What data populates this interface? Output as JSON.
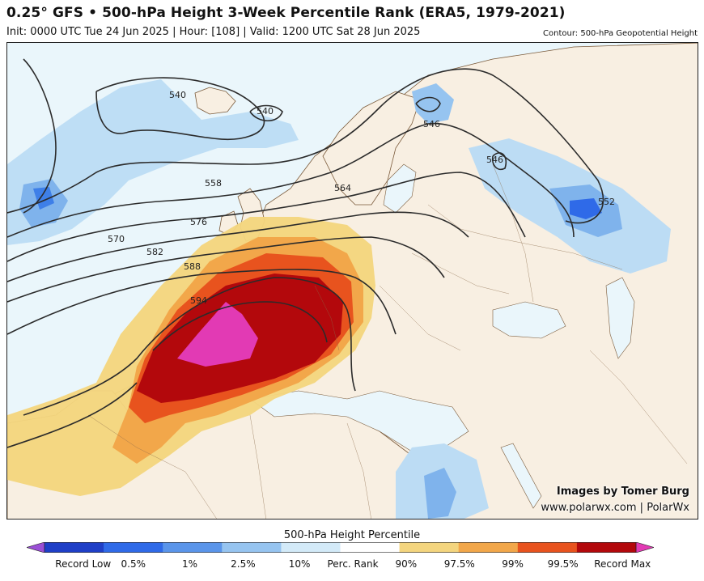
{
  "header": {
    "title": "0.25° GFS • 500-hPa Height 3-Week Percentile Rank (ERA5, 1979-2021)",
    "subtitle": "Init: 0000 UTC Tue 24 Jun 2025 | Hour: [108] | Valid: 1200 UTC Sat 28 Jun 2025",
    "contour_note": "Contour: 500-hPa Geopotential Height"
  },
  "credits": {
    "line1": "Images by Tomer Burg",
    "line2": "www.polarwx.com | PolarWx"
  },
  "contour_labels": [
    "540",
    "540",
    "546",
    "546",
    "552",
    "558",
    "564",
    "570",
    "576",
    "582",
    "588",
    "594"
  ],
  "colorbar": {
    "title": "500-hPa Height Percentile",
    "labels": [
      "Record Low",
      "0.5%",
      "1%",
      "2.5%",
      "10%",
      "Perc. Rank",
      "90%",
      "97.5%",
      "99%",
      "99.5%",
      "Record Max"
    ],
    "colors": [
      "#9b4fd6",
      "#1f3fc7",
      "#2f6ae8",
      "#5a95ea",
      "#96c4f0",
      "#d3eaf8",
      "#ffffff",
      "#f4d57e",
      "#f2a74a",
      "#e8531e",
      "#b3080c",
      "#e23ab4"
    ]
  }
}
